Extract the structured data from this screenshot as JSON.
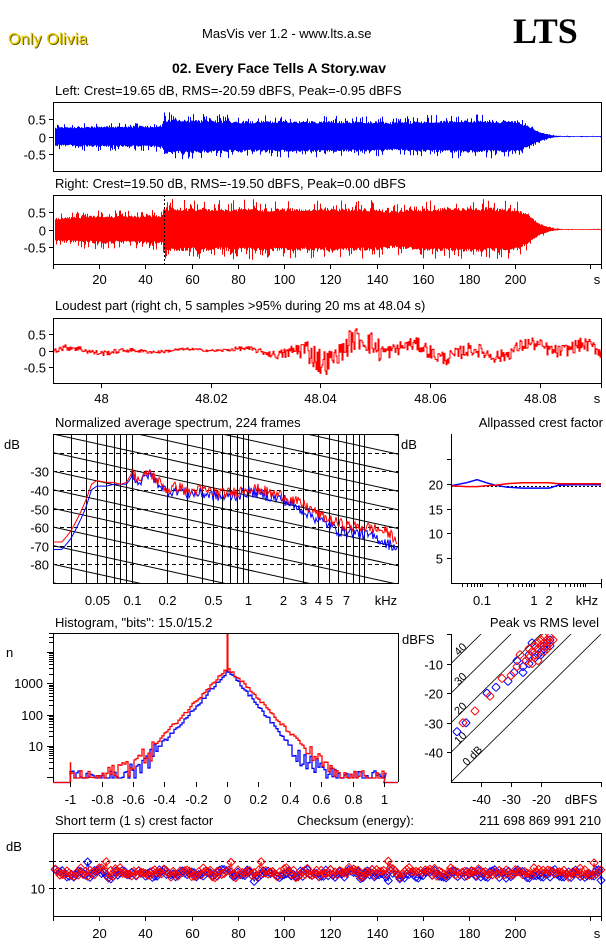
{
  "header": {
    "brand": "Only Olivia",
    "app_title": "MasVis ver 1.2 - www.lts.a.se",
    "logo": "LTS",
    "file_title": "02. Every Face Tells A Story.wav"
  },
  "colors": {
    "left": "#0000ff",
    "right": "#ff0000",
    "axis": "#000000",
    "brand": "#e8cf00"
  },
  "chart_data": [
    {
      "id": "waveform-left",
      "type": "area",
      "title": "Left: Crest=19.65 dB, RMS=-20.59 dBFS, Peak=-0.95 dBFS",
      "series": "left",
      "ylim": [
        -1,
        1
      ],
      "yticks": [
        0.5,
        0,
        -0.5
      ],
      "ytick_labels": [
        "0.5",
        "0",
        "-0.5"
      ],
      "xlim": [
        0,
        237
      ],
      "envelope": {
        "x": [
          0,
          10,
          20,
          30,
          40,
          47,
          48,
          60,
          80,
          100,
          120,
          140,
          146,
          160,
          180,
          200,
          205,
          210,
          214,
          217,
          220,
          237
        ],
        "peak": [
          0.38,
          0.42,
          0.42,
          0.42,
          0.45,
          0.45,
          0.72,
          0.68,
          0.65,
          0.62,
          0.62,
          0.6,
          0.55,
          0.62,
          0.65,
          0.62,
          0.45,
          0.2,
          0.08,
          0.04,
          0.02,
          0.02
        ],
        "body": [
          0.22,
          0.24,
          0.25,
          0.25,
          0.26,
          0.26,
          0.42,
          0.4,
          0.38,
          0.38,
          0.38,
          0.38,
          0.35,
          0.38,
          0.4,
          0.38,
          0.28,
          0.12,
          0.05,
          0.02,
          0.01,
          0.01
        ]
      }
    },
    {
      "id": "waveform-right",
      "type": "area",
      "title": "Right: Crest=19.50 dB, RMS=-19.50 dBFS, Peak=0.00 dBFS",
      "series": "right",
      "ylim": [
        -1,
        1
      ],
      "yticks": [
        0.5,
        0,
        -0.5
      ],
      "ytick_labels": [
        "0.5",
        "0",
        "-0.5"
      ],
      "xlim": [
        0,
        237
      ],
      "xticks": [
        20,
        40,
        60,
        80,
        100,
        120,
        140,
        160,
        180,
        200
      ],
      "xtick_labels": [
        "20",
        "40",
        "60",
        "80",
        "100",
        "120",
        "140",
        "160",
        "180",
        "200"
      ],
      "xunit": "s",
      "marker_x": 48.04,
      "envelope": {
        "x": [
          0,
          10,
          20,
          30,
          40,
          47,
          48,
          60,
          80,
          100,
          120,
          140,
          146,
          160,
          180,
          200,
          205,
          210,
          214,
          217,
          220,
          237
        ],
        "peak": [
          0.45,
          0.55,
          0.58,
          0.55,
          0.6,
          0.6,
          0.9,
          0.85,
          0.9,
          0.85,
          0.85,
          0.85,
          0.75,
          0.85,
          0.9,
          0.85,
          0.6,
          0.25,
          0.1,
          0.04,
          0.02,
          0.02
        ],
        "body": [
          0.28,
          0.32,
          0.33,
          0.32,
          0.34,
          0.34,
          0.55,
          0.52,
          0.52,
          0.52,
          0.52,
          0.52,
          0.46,
          0.52,
          0.55,
          0.52,
          0.38,
          0.15,
          0.06,
          0.02,
          0.01,
          0.01
        ]
      }
    },
    {
      "id": "loudest-part",
      "type": "line",
      "title": "Loudest part (right ch, 5 samples >95% during 20 ms at 48.04 s)",
      "series": "right",
      "ylim": [
        -1,
        1
      ],
      "yticks": [
        0.5,
        0,
        -0.5
      ],
      "ytick_labels": [
        "0.5",
        "0",
        "-0.5"
      ],
      "xlim": [
        47.9913,
        48.0911
      ],
      "xticks": [
        48,
        48.02,
        48.04,
        48.06,
        48.08
      ],
      "xtick_labels": [
        "48",
        "48.02",
        "48.04",
        "48.06",
        "48.08"
      ],
      "xunit": "s",
      "amplitude_profile": {
        "x": [
          47.9913,
          48.0,
          48.01,
          48.02,
          48.03,
          48.035,
          48.037,
          48.04,
          48.043,
          48.045,
          48.048,
          48.05,
          48.052,
          48.055,
          48.06,
          48.07,
          48.08,
          48.0911
        ],
        "amp": [
          0.22,
          0.18,
          0.1,
          0.08,
          0.2,
          0.45,
          0.8,
          0.98,
          0.6,
          0.88,
          0.7,
          0.98,
          0.5,
          0.45,
          0.5,
          0.45,
          0.45,
          0.45
        ]
      }
    },
    {
      "id": "spectrum",
      "type": "line",
      "title": "Normalized average spectrum, 224 frames",
      "ylabel": "dB",
      "ylim": [
        -90,
        -10
      ],
      "yticks": [
        -30,
        -40,
        -50,
        -60,
        -70,
        -80
      ],
      "ytick_labels": [
        "-30",
        "-40",
        "-50",
        "-60",
        "-70",
        "-80"
      ],
      "xscale": "log",
      "xlim": [
        0.021,
        19.6
      ],
      "xticks": [
        0.05,
        0.1,
        0.2,
        0.5,
        1,
        2,
        3,
        4,
        5,
        7
      ],
      "xtick_labels": [
        "0.05",
        "0.1",
        "0.2",
        "0.5",
        "1",
        "2",
        "3",
        "4",
        "5",
        "7"
      ],
      "xunit": "kHz",
      "series": [
        {
          "name": "left",
          "x": [
            0.021,
            0.025,
            0.03,
            0.035,
            0.04,
            0.045,
            0.05,
            0.06,
            0.07,
            0.08,
            0.09,
            0.1,
            0.12,
            0.14,
            0.16,
            0.2,
            0.25,
            0.3,
            0.4,
            0.5,
            0.6,
            0.8,
            1.0,
            1.3,
            1.6,
            2.0,
            2.5,
            3.0,
            4.0,
            5.0,
            6.0,
            8.0,
            10.0,
            13.0,
            16.0,
            19.6
          ],
          "y": [
            -72,
            -72,
            -66,
            -58,
            -50,
            -40,
            -38,
            -38,
            -37,
            -37,
            -37,
            -33,
            -36,
            -31,
            -35,
            -41,
            -40,
            -42,
            -42,
            -43,
            -44,
            -43,
            -41,
            -42,
            -44,
            -45,
            -49,
            -51,
            -56,
            -59,
            -62,
            -63,
            -64,
            -66,
            -69,
            -71
          ]
        },
        {
          "name": "right",
          "x": [
            0.021,
            0.025,
            0.03,
            0.035,
            0.04,
            0.045,
            0.05,
            0.06,
            0.07,
            0.08,
            0.09,
            0.1,
            0.12,
            0.14,
            0.16,
            0.2,
            0.25,
            0.3,
            0.4,
            0.5,
            0.6,
            0.8,
            1.0,
            1.3,
            1.6,
            2.0,
            2.5,
            3.0,
            4.0,
            5.0,
            6.0,
            8.0,
            10.0,
            13.0,
            16.0,
            19.6
          ],
          "y": [
            -68,
            -68,
            -62,
            -54,
            -46,
            -37,
            -35,
            -36,
            -36,
            -37,
            -36,
            -31,
            -35,
            -30,
            -34,
            -40,
            -38,
            -41,
            -40,
            -41,
            -42,
            -41,
            -39,
            -40,
            -42,
            -43,
            -46,
            -48,
            -53,
            -56,
            -58,
            -60,
            -60,
            -61,
            -63,
            -67
          ]
        }
      ]
    },
    {
      "id": "allpassed-crest",
      "type": "line",
      "title": "Allpassed crest factor",
      "ylabel": "dB",
      "ylim": [
        0,
        30
      ],
      "yticks": [
        20,
        15,
        10,
        5
      ],
      "ytick_labels": [
        "20",
        "15",
        "10",
        "5"
      ],
      "xscale": "log",
      "xlim": [
        0.025,
        20
      ],
      "xticks": [
        0.1,
        1,
        2
      ],
      "xtick_labels": [
        "0.1",
        "1",
        "2"
      ],
      "xunit": "kHz",
      "reference_db": 19.6,
      "series": [
        {
          "name": "left",
          "x": [
            0.025,
            0.05,
            0.08,
            0.12,
            0.18,
            0.3,
            0.6,
            1.0,
            2.0,
            3.0,
            6.0,
            10.0,
            20.0
          ],
          "y": [
            19.6,
            20.2,
            20.8,
            20.2,
            19.7,
            19.3,
            19.1,
            19.1,
            19.1,
            19.7,
            19.8,
            19.8,
            19.8
          ]
        },
        {
          "name": "right",
          "x": [
            0.025,
            0.05,
            0.08,
            0.12,
            0.18,
            0.3,
            0.6,
            1.0,
            2.0,
            3.0,
            6.0,
            10.0,
            20.0
          ],
          "y": [
            19.6,
            19.4,
            19.4,
            19.6,
            19.7,
            20.0,
            20.2,
            20.2,
            20.2,
            20.0,
            20.0,
            20.0,
            20.0
          ]
        }
      ]
    },
    {
      "id": "histogram",
      "type": "line",
      "title": "Histogram, \"bits\": 15.0/15.2",
      "ylabel": "n",
      "yscale": "log",
      "ylim": [
        0.7,
        40000
      ],
      "yticks": [
        1000,
        100,
        10
      ],
      "ytick_labels": [
        "1000",
        "100",
        "10"
      ],
      "xlim": [
        -1.11,
        1.09
      ],
      "xticks": [
        -1,
        -0.8,
        -0.6,
        -0.4,
        -0.2,
        0,
        0.2,
        0.4,
        0.6,
        0.8,
        1
      ],
      "xtick_labels": [
        "-1",
        "-0.8",
        "-0.6",
        "-0.4",
        "-0.2",
        "0",
        "0.2",
        "0.4",
        "0.6",
        "0.8",
        "1"
      ],
      "series": [
        {
          "name": "left",
          "x": [
            -1.0,
            -0.8,
            -0.7,
            -0.6,
            -0.5,
            -0.4,
            -0.3,
            -0.2,
            -0.1,
            0.0,
            0.1,
            0.2,
            0.3,
            0.4,
            0.5,
            0.6,
            0.7,
            0.8,
            1.0
          ],
          "y": [
            1,
            1,
            1,
            2,
            5,
            15,
            50,
            180,
            700,
            2500,
            700,
            180,
            40,
            10,
            4,
            2,
            1,
            1,
            1
          ]
        },
        {
          "name": "right",
          "x": [
            -1.0,
            -0.8,
            -0.7,
            -0.6,
            -0.5,
            -0.4,
            -0.3,
            -0.2,
            -0.1,
            0.0,
            0.1,
            0.2,
            0.3,
            0.4,
            0.5,
            0.6,
            0.7,
            0.8,
            1.0
          ],
          "y": [
            1,
            1,
            2,
            3,
            7,
            25,
            80,
            280,
            1000,
            3000,
            1000,
            300,
            80,
            25,
            8,
            3,
            1,
            1,
            1
          ]
        }
      ],
      "right_center_spike": 30000,
      "right_edge_spike_at_minus1": 3
    },
    {
      "id": "peak-vs-rms",
      "type": "scatter",
      "title": "Peak vs RMS level",
      "ylabel": "dBFS",
      "xlabel": "dBFS",
      "xlim": [
        -50,
        0
      ],
      "ylim": [
        -50,
        0
      ],
      "xticks": [
        -40,
        -30,
        -20
      ],
      "xtick_labels": [
        "-40",
        "-30",
        "-20"
      ],
      "yticks": [
        -10,
        -20,
        -30,
        -40
      ],
      "ytick_labels": [
        "-10",
        "-20",
        "-30",
        "-40"
      ],
      "crest_lines_db": [
        0,
        10,
        20,
        30,
        40
      ],
      "crest_line_labels": [
        "0 dB",
        "10",
        "20",
        "30",
        "40"
      ],
      "series": [
        {
          "name": "left",
          "x": [
            -48,
            -45,
            -38,
            -35,
            -31,
            -29,
            -28,
            -26,
            -26,
            -25,
            -24,
            -24,
            -23,
            -22,
            -21,
            -21,
            -20,
            -19,
            -18,
            -18,
            -17,
            -17,
            -23,
            -20,
            -19
          ],
          "y": [
            -33,
            -30,
            -20,
            -18,
            -16,
            -13,
            -9,
            -13,
            -11,
            -9,
            -7,
            -10,
            -6,
            -8,
            -5,
            -7,
            -6,
            -4,
            -4,
            -3,
            -4,
            -2,
            -3,
            -7,
            -5
          ]
        },
        {
          "name": "right",
          "x": [
            -46,
            -42,
            -37,
            -33,
            -30,
            -28,
            -27,
            -25,
            -24,
            -24,
            -23,
            -22,
            -22,
            -21,
            -21,
            -20,
            -20,
            -19,
            -19,
            -18,
            -18,
            -17,
            -17,
            -16,
            -19,
            -18,
            -21,
            -23
          ],
          "y": [
            -30,
            -26,
            -21,
            -15,
            -14,
            -11,
            -7,
            -9,
            -8,
            -5,
            -6,
            -4,
            -7,
            -5,
            -3,
            -4,
            -2,
            -3,
            -1,
            -2,
            -4,
            -3,
            -1,
            -2,
            -6,
            -5,
            -9,
            -10
          ]
        }
      ]
    },
    {
      "id": "short-term-crest",
      "type": "scatter",
      "title": "Short term (1 s) crest factor",
      "ylabel": "dB",
      "xlim": [
        0,
        237
      ],
      "ylim": [
        0,
        30
      ],
      "yticks": [
        10
      ],
      "ytick_labels": [
        "10"
      ],
      "dashed_lines": [
        10,
        20
      ],
      "xticks": [
        20,
        40,
        60,
        80,
        100,
        120,
        140,
        160,
        180,
        200
      ],
      "xtick_labels": [
        "20",
        "40",
        "60",
        "80",
        "100",
        "120",
        "140",
        "160",
        "180",
        "200"
      ],
      "xunit": "s",
      "series": [
        {
          "name": "left",
          "mean": 15.2,
          "spread": 1.3,
          "outliers": [
            [
              15,
              19.5
            ],
            [
              87,
              12.5
            ],
            [
              145,
              12.8
            ],
            [
              237,
              12.9
            ]
          ]
        },
        {
          "name": "right",
          "mean": 15.7,
          "spread": 1.4,
          "outliers": [
            [
              23,
              19.6
            ],
            [
              77,
              19.4
            ],
            [
              90,
              19.6
            ],
            [
              145,
              19.8
            ],
            [
              234,
              19.2
            ]
          ]
        }
      ]
    }
  ],
  "checksum": {
    "label": "Checksum (energy):",
    "value": "211 698 869 991 210"
  }
}
